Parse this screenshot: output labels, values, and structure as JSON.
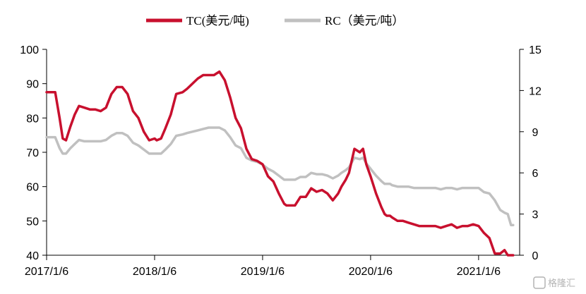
{
  "chart_data": {
    "type": "line",
    "title": "",
    "xlabel": "",
    "ylabel": "",
    "y_left_range": [
      40,
      100
    ],
    "y_left_ticks": [
      "40",
      "50",
      "60",
      "70",
      "80",
      "90",
      "100"
    ],
    "y_right_range": [
      0,
      15
    ],
    "y_right_ticks": [
      "0",
      "3",
      "6",
      "9",
      "12",
      "15"
    ],
    "x_tick_labels": [
      "2017/1/6",
      "2018/1/6",
      "2019/1/6",
      "2020/1/6",
      "2021/1/6"
    ],
    "x_range": [
      2017.0,
      2021.38
    ],
    "grid": false,
    "legend_position": "top",
    "series": [
      {
        "name": "TC(美元/吨)",
        "axis": "left",
        "color": "#c8102e",
        "x": [
          2017.0,
          2017.08,
          2017.12,
          2017.15,
          2017.18,
          2017.22,
          2017.26,
          2017.3,
          2017.35,
          2017.4,
          2017.45,
          2017.5,
          2017.55,
          2017.6,
          2017.65,
          2017.7,
          2017.75,
          2017.8,
          2017.85,
          2017.9,
          2017.95,
          2018.0,
          2018.02,
          2018.06,
          2018.1,
          2018.15,
          2018.2,
          2018.26,
          2018.3,
          2018.35,
          2018.4,
          2018.45,
          2018.5,
          2018.55,
          2018.6,
          2018.65,
          2018.7,
          2018.75,
          2018.8,
          2018.85,
          2018.9,
          2018.95,
          2019.0,
          2019.05,
          2019.1,
          2019.15,
          2019.2,
          2019.22,
          2019.27,
          2019.3,
          2019.35,
          2019.4,
          2019.45,
          2019.5,
          2019.55,
          2019.6,
          2019.65,
          2019.7,
          2019.73,
          2019.77,
          2019.8,
          2019.85,
          2019.9,
          2019.93,
          2019.96,
          2020.0,
          2020.05,
          2020.1,
          2020.13,
          2020.15,
          2020.18,
          2020.2,
          2020.25,
          2020.3,
          2020.35,
          2020.4,
          2020.45,
          2020.5,
          2020.55,
          2020.6,
          2020.65,
          2020.7,
          2020.75,
          2020.8,
          2020.85,
          2020.9,
          2020.95,
          2021.0,
          2021.05,
          2021.1,
          2021.15,
          2021.2,
          2021.24,
          2021.27,
          2021.3,
          2021.32
        ],
        "values": [
          87.5,
          87.5,
          80.0,
          74.0,
          73.5,
          77.5,
          81.0,
          83.5,
          83.0,
          82.5,
          82.5,
          82.0,
          83.0,
          87.0,
          89.0,
          89.0,
          87.0,
          82.0,
          80.0,
          76.0,
          73.5,
          74.0,
          73.5,
          74.0,
          77.0,
          81.0,
          87.0,
          87.5,
          88.5,
          90.0,
          91.5,
          92.5,
          92.5,
          92.5,
          93.5,
          91.0,
          86.0,
          80.0,
          77.0,
          71.0,
          68.0,
          67.5,
          66.5,
          63.0,
          61.5,
          58.0,
          55.0,
          54.5,
          54.5,
          54.5,
          57.0,
          57.0,
          59.5,
          58.5,
          59.0,
          58.0,
          56.0,
          58.0,
          60.0,
          62.0,
          64.0,
          71.0,
          70.0,
          71.0,
          66.5,
          63.0,
          58.0,
          54.0,
          52.0,
          51.5,
          51.5,
          51.0,
          50.0,
          50.0,
          49.5,
          49.0,
          48.5,
          48.5,
          48.5,
          48.5,
          48.0,
          48.5,
          49.0,
          48.0,
          48.5,
          48.5,
          49.0,
          48.5,
          46.5,
          45.0,
          40.5,
          40.5,
          41.5,
          40.0,
          40.0,
          40.0
        ]
      },
      {
        "name": "RC（美元/吨）",
        "axis": "right",
        "color": "#c0c0c0",
        "x": [
          2017.0,
          2017.08,
          2017.12,
          2017.15,
          2017.18,
          2017.22,
          2017.26,
          2017.3,
          2017.35,
          2017.4,
          2017.45,
          2017.5,
          2017.55,
          2017.6,
          2017.65,
          2017.7,
          2017.75,
          2017.8,
          2017.85,
          2017.9,
          2017.95,
          2018.0,
          2018.02,
          2018.06,
          2018.1,
          2018.15,
          2018.2,
          2018.26,
          2018.3,
          2018.35,
          2018.4,
          2018.45,
          2018.5,
          2018.55,
          2018.6,
          2018.65,
          2018.7,
          2018.75,
          2018.8,
          2018.85,
          2018.9,
          2018.95,
          2019.0,
          2019.05,
          2019.1,
          2019.15,
          2019.2,
          2019.22,
          2019.27,
          2019.3,
          2019.35,
          2019.4,
          2019.45,
          2019.5,
          2019.55,
          2019.6,
          2019.65,
          2019.7,
          2019.73,
          2019.77,
          2019.8,
          2019.85,
          2019.9,
          2019.93,
          2019.96,
          2020.0,
          2020.05,
          2020.1,
          2020.13,
          2020.15,
          2020.18,
          2020.2,
          2020.25,
          2020.3,
          2020.35,
          2020.4,
          2020.45,
          2020.5,
          2020.55,
          2020.6,
          2020.65,
          2020.7,
          2020.75,
          2020.8,
          2020.85,
          2020.9,
          2020.95,
          2021.0,
          2021.05,
          2021.1,
          2021.15,
          2021.2,
          2021.24,
          2021.27,
          2021.3,
          2021.32
        ],
        "values": [
          8.6,
          8.6,
          7.8,
          7.4,
          7.4,
          7.8,
          8.1,
          8.4,
          8.3,
          8.3,
          8.3,
          8.3,
          8.4,
          8.7,
          8.9,
          8.9,
          8.7,
          8.2,
          8.0,
          7.7,
          7.4,
          7.4,
          7.4,
          7.4,
          7.7,
          8.1,
          8.7,
          8.8,
          8.9,
          9.0,
          9.1,
          9.2,
          9.3,
          9.3,
          9.3,
          9.1,
          8.6,
          8.0,
          7.8,
          7.1,
          6.9,
          6.8,
          6.6,
          6.3,
          6.1,
          5.8,
          5.5,
          5.5,
          5.5,
          5.5,
          5.7,
          5.7,
          6.0,
          5.9,
          5.9,
          5.8,
          5.6,
          5.8,
          6.0,
          6.2,
          6.4,
          7.1,
          7.0,
          7.1,
          6.7,
          6.3,
          5.8,
          5.4,
          5.2,
          5.2,
          5.2,
          5.1,
          5.0,
          5.0,
          5.0,
          4.9,
          4.9,
          4.9,
          4.9,
          4.9,
          4.8,
          4.9,
          4.9,
          4.8,
          4.9,
          4.9,
          4.9,
          4.9,
          4.6,
          4.5,
          4.0,
          3.3,
          3.1,
          3.0,
          2.2,
          2.2
        ]
      }
    ]
  },
  "watermark": {
    "text": "格隆汇"
  }
}
